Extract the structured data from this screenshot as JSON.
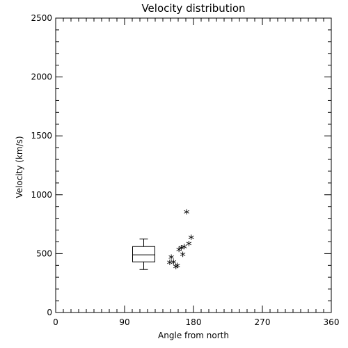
{
  "chart_data": {
    "type": "scatter",
    "title": "Velocity distribution",
    "xlabel": "Angle from north",
    "ylabel": "Velocity (km/s)",
    "xlim": [
      0,
      360
    ],
    "ylim": [
      0,
      2500
    ],
    "x_ticks": [
      0,
      90,
      180,
      270,
      360
    ],
    "x_tick_labels": [
      "0",
      "90",
      "180",
      "270",
      "360"
    ],
    "y_ticks": [
      0,
      500,
      1000,
      1500,
      2000,
      2500
    ],
    "y_tick_labels": [
      "0",
      "500",
      "1000",
      "1500",
      "2000",
      "2500"
    ],
    "grid": false,
    "marker_symbol": "*",
    "color": "#000000",
    "points": [
      {
        "x": 149,
        "y": 410
      },
      {
        "x": 151,
        "y": 455
      },
      {
        "x": 154,
        "y": 415
      },
      {
        "x": 157,
        "y": 375
      },
      {
        "x": 159,
        "y": 385
      },
      {
        "x": 161,
        "y": 520
      },
      {
        "x": 164,
        "y": 535
      },
      {
        "x": 166,
        "y": 480
      },
      {
        "x": 168,
        "y": 545
      },
      {
        "x": 171,
        "y": 840
      },
      {
        "x": 174,
        "y": 570
      },
      {
        "x": 177,
        "y": 625
      }
    ],
    "boxplot": {
      "x": 115,
      "min": 365,
      "q1": 430,
      "median": 490,
      "q3": 560,
      "max": 625
    }
  }
}
